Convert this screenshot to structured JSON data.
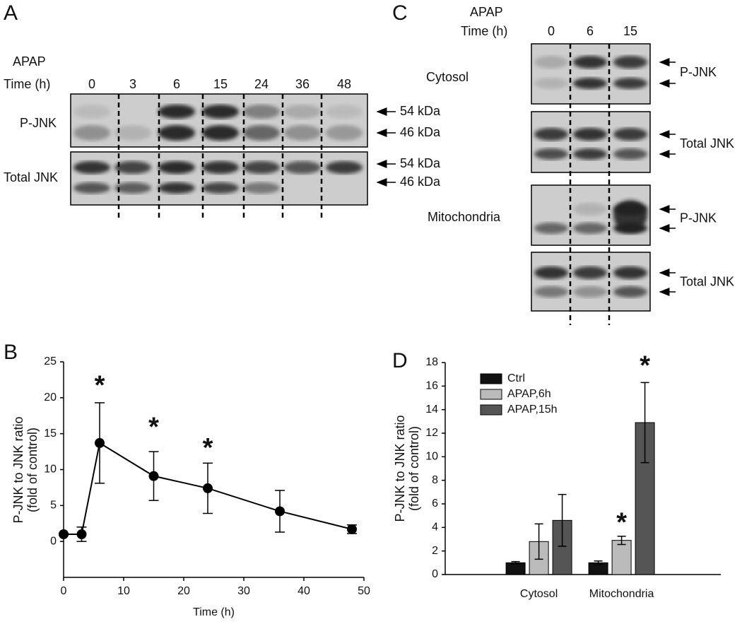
{
  "panels": {
    "a": "A",
    "b": "B",
    "c": "C",
    "d": "D"
  },
  "blot_a": {
    "treatment": "APAP",
    "time_label": "Time (h)",
    "lanes": [
      "0",
      "3",
      "6",
      "15",
      "24",
      "36",
      "48"
    ],
    "rows": [
      "P-JNK",
      "Total JNK"
    ],
    "markers": [
      "54 kDa",
      "46 kDa",
      "54 kDa",
      "46 kDa"
    ]
  },
  "blot_c": {
    "treatment": "APAP",
    "time_label": "Time (h)",
    "lanes": [
      "0",
      "6",
      "15"
    ],
    "fractions": [
      "Cytosol",
      "Mitochondria"
    ],
    "rows": [
      "P-JNK",
      "Total JNK",
      "P-JNK",
      "Total JNK"
    ]
  },
  "chart_data": [
    {
      "type": "line",
      "xlabel": "Time (h)",
      "ylabel": [
        "P-JNK to JNK ratio",
        "(fold of control)"
      ],
      "x": [
        0,
        3,
        6,
        15,
        24,
        36,
        48
      ],
      "values": [
        1,
        1,
        13.7,
        9.1,
        7.4,
        4.2,
        1.7
      ],
      "errors": [
        0.1,
        1.0,
        5.6,
        3.4,
        3.5,
        2.9,
        0.6
      ],
      "color": "#000000",
      "xlim": [
        0,
        50
      ],
      "xticks": [
        0,
        10,
        20,
        30,
        40,
        50
      ],
      "ylim": [
        -5,
        25
      ],
      "yticks": [
        0,
        5,
        10,
        15,
        20,
        25
      ],
      "annotations": [
        {
          "text": "*",
          "x": 6,
          "y": 21.5
        },
        {
          "text": "*",
          "x": 15,
          "y": 15.7
        },
        {
          "text": "*",
          "x": 24,
          "y": 12.8
        }
      ]
    },
    {
      "type": "bar",
      "ylabel": [
        "P-JNK to JNK ratio",
        "(fold of control)"
      ],
      "categories": [
        "Cytosol",
        "Mitochondria"
      ],
      "series": [
        {
          "name": "Ctrl",
          "color": "#111111",
          "values": [
            1,
            1
          ],
          "errors": [
            0.1,
            0.15
          ]
        },
        {
          "name": "APAP,6h",
          "color": "#bbbbbb",
          "values": [
            2.8,
            2.9
          ],
          "errors": [
            1.5,
            0.35
          ]
        },
        {
          "name": "APAP,15h",
          "color": "#555555",
          "values": [
            4.6,
            12.9
          ],
          "errors": [
            2.2,
            3.4
          ]
        }
      ],
      "ylim": [
        0,
        18
      ],
      "yticks": [
        0,
        2,
        4,
        6,
        8,
        10,
        12,
        14,
        16,
        18
      ],
      "legend": "upper-left",
      "annotations": [
        {
          "text": "*",
          "category": "Mitochondria",
          "series": "APAP,6h",
          "y": 4.3
        },
        {
          "text": "*",
          "category": "Mitochondria",
          "series": "APAP,15h",
          "y": 17.6
        }
      ]
    }
  ]
}
